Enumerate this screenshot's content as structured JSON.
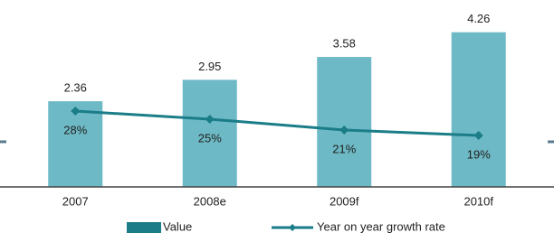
{
  "chart_data": {
    "type": "bar",
    "categories": [
      "2007",
      "2008e",
      "2009f",
      "2010f"
    ],
    "series": [
      {
        "name": "Value",
        "type": "bar",
        "color": "#6db9c5",
        "values": [
          2.36,
          2.95,
          3.58,
          4.26
        ]
      },
      {
        "name": "Year on year growth rate",
        "type": "line",
        "axis": "y2",
        "color": "#1a7d88",
        "values": [
          28,
          25,
          21,
          19
        ],
        "value_labels": [
          "28%",
          "25%",
          "21%",
          "19%"
        ]
      }
    ],
    "ylim": [
      0,
      5
    ],
    "y2lim": [
      0,
      67
    ],
    "legend": "bottom"
  }
}
